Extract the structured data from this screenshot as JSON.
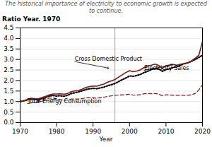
{
  "chart_data": {
    "type": "line",
    "title": "The historical importance of electricity to economic growth is expected to continue.",
    "xlabel": "Year",
    "ylabel": "Ratio Year. 1970",
    "x": [
      1970,
      1971,
      1972,
      1973,
      1974,
      1975,
      1976,
      1977,
      1978,
      1979,
      1980,
      1981,
      1982,
      1983,
      1984,
      1985,
      1986,
      1987,
      1988,
      1989,
      1990,
      1991,
      1992,
      1993,
      1994,
      1995,
      1996,
      1997,
      1998,
      1999,
      2000,
      2001,
      2002,
      2003,
      2004,
      2005,
      2006,
      2007,
      2008,
      2009,
      2010,
      2011,
      2012,
      2013,
      2014,
      2015,
      2016,
      2017,
      2018,
      2019,
      2020
    ],
    "series": [
      {
        "color": "#000000",
        "line_style": "dotted",
        "values": [
          1.0,
          1.03,
          1.08,
          1.13,
          1.12,
          1.1,
          1.15,
          1.2,
          1.26,
          1.29,
          1.26,
          1.28,
          1.25,
          1.3,
          1.38,
          1.42,
          1.46,
          1.51,
          1.57,
          1.61,
          1.63,
          1.61,
          1.65,
          1.69,
          1.75,
          1.8,
          1.86,
          1.95,
          2.04,
          2.12,
          2.22,
          2.2,
          2.24,
          2.29,
          2.38,
          2.44,
          2.52,
          2.58,
          2.55,
          2.44,
          2.52,
          2.56,
          2.62,
          2.66,
          2.73,
          2.8,
          2.84,
          2.92,
          3.0,
          3.1,
          3.2
        ]
      },
      {
        "color": "#7a1a1a",
        "line_style": "solid",
        "values": [
          1.0,
          1.04,
          1.1,
          1.16,
          1.14,
          1.13,
          1.19,
          1.25,
          1.32,
          1.36,
          1.36,
          1.37,
          1.35,
          1.38,
          1.47,
          1.51,
          1.53,
          1.59,
          1.67,
          1.71,
          1.74,
          1.73,
          1.79,
          1.83,
          1.92,
          1.98,
          2.05,
          2.16,
          2.27,
          2.38,
          2.47,
          2.42,
          2.45,
          2.51,
          2.62,
          2.69,
          2.73,
          2.78,
          2.72,
          2.57,
          2.7,
          2.74,
          2.76,
          2.73,
          2.78,
          2.8,
          2.84,
          2.93,
          3.06,
          3.2,
          3.85
        ]
      },
      {
        "color": "#7a1a1a",
        "line_style": "dashed",
        "values": [
          1.0,
          1.02,
          1.07,
          1.11,
          1.07,
          1.04,
          1.09,
          1.12,
          1.16,
          1.17,
          1.13,
          1.1,
          1.06,
          1.07,
          1.12,
          1.12,
          1.12,
          1.14,
          1.18,
          1.19,
          1.18,
          1.16,
          1.19,
          1.21,
          1.25,
          1.27,
          1.3,
          1.31,
          1.32,
          1.33,
          1.35,
          1.31,
          1.31,
          1.33,
          1.37,
          1.38,
          1.37,
          1.38,
          1.36,
          1.27,
          1.32,
          1.32,
          1.3,
          1.3,
          1.31,
          1.3,
          1.3,
          1.33,
          1.38,
          1.55,
          1.8
        ]
      }
    ],
    "xlim": [
      1970,
      2020
    ],
    "ylim": [
      0,
      4.5
    ],
    "xticks": [
      1970,
      1980,
      1990,
      2000,
      2010,
      2020
    ],
    "yticks": [
      {
        "value": 0,
        "label": "0.0"
      },
      0.5,
      {
        "value": 1,
        "label": "1.0"
      },
      1.5,
      {
        "value": 2,
        "label": "2.0"
      },
      2.5,
      {
        "value": 3,
        "label": "3.0"
      },
      3.5,
      {
        "value": 4,
        "label": "4.0"
      },
      4.5
    ],
    "grid": true,
    "vlines": [
      1996
    ],
    "annotations": [
      {
        "text": "Cross Domestic Product",
        "xy": [
          1994.5,
          2.58
        ],
        "xytext": [
          1985,
          2.9
        ]
      },
      {
        "text": "Electricity Sales",
        "xy": [
          2012,
          2.76
        ],
        "xytext": [
          2004,
          2.48
        ]
      },
      {
        "text": "Total Energy Consumption",
        "xy": [
          1980,
          1.14
        ],
        "xytext": [
          1972,
          0.9
        ]
      }
    ]
  }
}
